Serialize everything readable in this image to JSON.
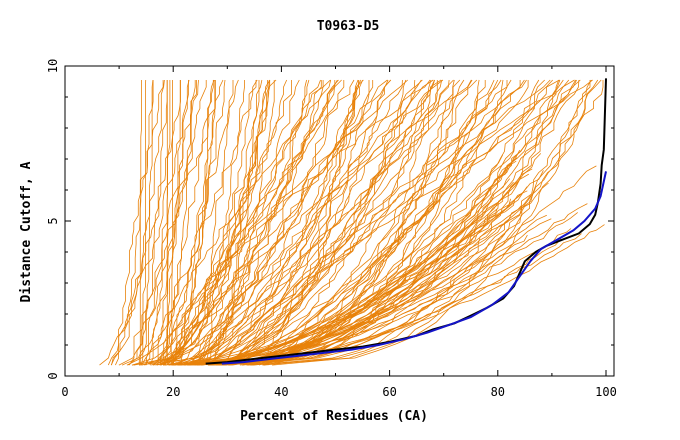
{
  "chart_data": {
    "type": "line",
    "title": "T0963-D5",
    "xlabel": "Percent of Residues (CA)",
    "ylabel": "Distance Cutoff, A",
    "xlim": [
      0,
      100
    ],
    "ylim": [
      0,
      10
    ],
    "x_ticks": [
      "0",
      "20",
      "40",
      "60",
      "80",
      "100"
    ],
    "y_ticks": [
      "0",
      "5",
      "10"
    ],
    "grid": false,
    "legend": "none",
    "colors": {
      "background_series": "#e8820a",
      "highlight_1": "#000000",
      "highlight_2": "#1414c8"
    },
    "series": [
      {
        "role": "highlight",
        "color": "#000000",
        "points": [
          [
            26,
            0.4
          ],
          [
            30,
            0.45
          ],
          [
            35,
            0.55
          ],
          [
            40,
            0.65
          ],
          [
            45,
            0.75
          ],
          [
            50,
            0.85
          ],
          [
            55,
            0.95
          ],
          [
            60,
            1.1
          ],
          [
            65,
            1.3
          ],
          [
            68,
            1.5
          ],
          [
            72,
            1.7
          ],
          [
            75,
            1.95
          ],
          [
            78,
            2.2
          ],
          [
            81,
            2.5
          ],
          [
            83,
            2.9
          ],
          [
            84,
            3.3
          ],
          [
            85,
            3.7
          ],
          [
            87,
            4.0
          ],
          [
            89,
            4.2
          ],
          [
            92,
            4.4
          ],
          [
            95,
            4.6
          ],
          [
            97,
            4.9
          ],
          [
            98,
            5.2
          ],
          [
            98.5,
            5.6
          ],
          [
            99,
            6.2
          ],
          [
            99.2,
            6.8
          ],
          [
            99.6,
            7.3
          ],
          [
            100,
            9.6
          ]
        ]
      },
      {
        "role": "highlight",
        "color": "#1414c8",
        "points": [
          [
            29,
            0.4
          ],
          [
            33,
            0.45
          ],
          [
            38,
            0.55
          ],
          [
            43,
            0.65
          ],
          [
            48,
            0.75
          ],
          [
            53,
            0.85
          ],
          [
            58,
            1.0
          ],
          [
            63,
            1.2
          ],
          [
            67,
            1.4
          ],
          [
            71,
            1.65
          ],
          [
            75,
            1.9
          ],
          [
            79,
            2.3
          ],
          [
            82,
            2.7
          ],
          [
            84,
            3.2
          ],
          [
            86,
            3.7
          ],
          [
            88,
            4.1
          ],
          [
            91,
            4.4
          ],
          [
            94,
            4.7
          ],
          [
            96,
            5.0
          ],
          [
            98,
            5.4
          ],
          [
            99,
            5.8
          ],
          [
            100,
            6.6
          ]
        ]
      }
    ]
  }
}
